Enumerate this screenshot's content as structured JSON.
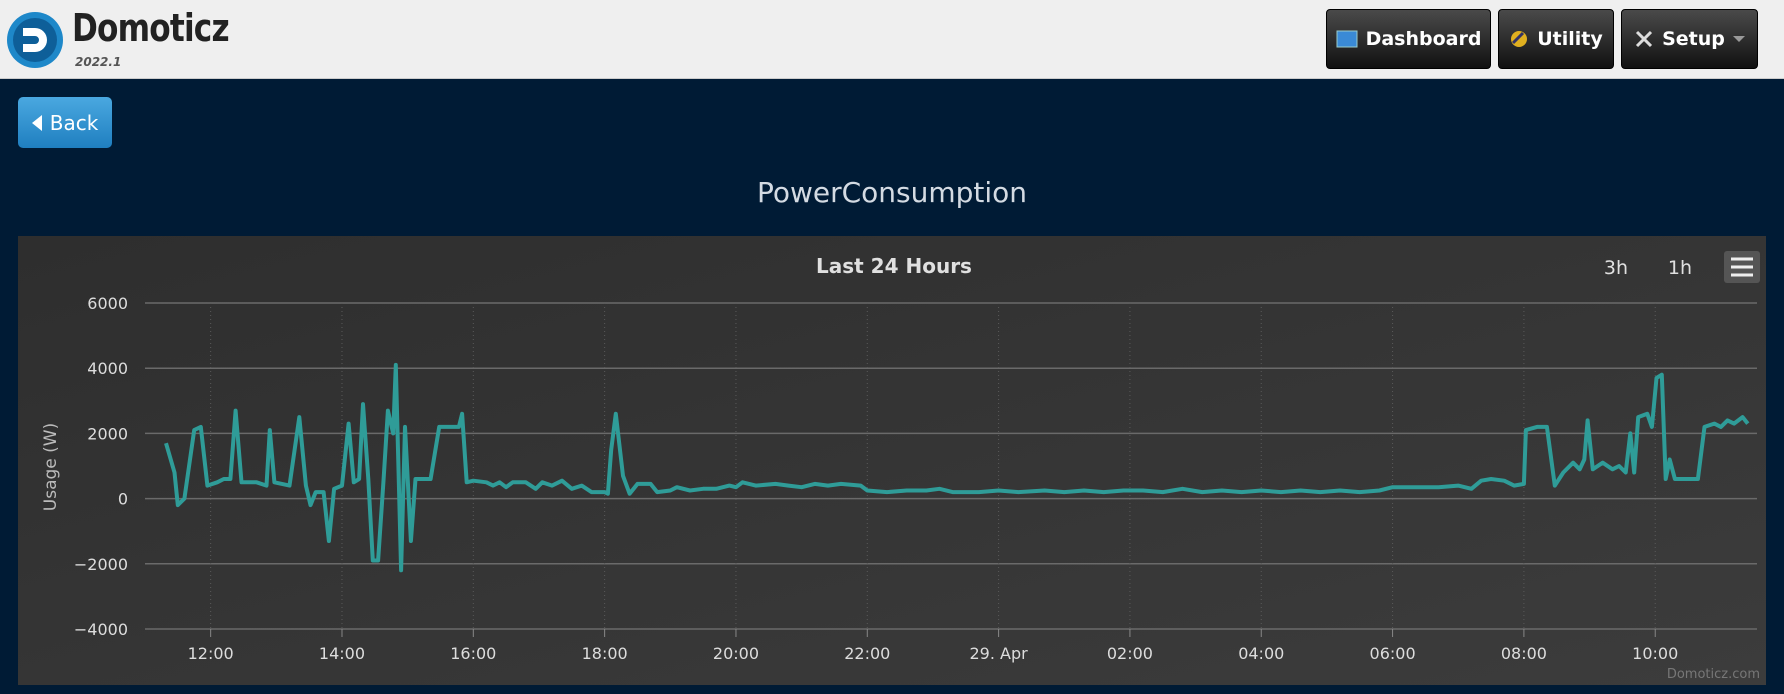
{
  "header": {
    "app_name": "Domoticz",
    "version": "2022.1"
  },
  "nav": [
    "Dashboard",
    "Utility",
    "Setup"
  ],
  "back_button": "Back",
  "page_title": "PowerConsumption",
  "chart_data": {
    "type": "line",
    "title": "Last 24 Hours",
    "y_label": "Usage (W)",
    "zoom_buttons": [
      "3h",
      "1h"
    ],
    "credits": "Domoticz.com",
    "color": "#2f9c98",
    "grid": true,
    "x": [
      11.32,
      11.45,
      11.5,
      11.6,
      11.75,
      11.85,
      11.95,
      12.1,
      12.2,
      12.3,
      12.38,
      12.47,
      12.7,
      12.85,
      12.9,
      12.97,
      13.2,
      13.35,
      13.45,
      13.52,
      13.6,
      13.72,
      13.8,
      13.88,
      14.0,
      14.1,
      14.18,
      14.26,
      14.32,
      14.4,
      14.47,
      14.55,
      14.63,
      14.7,
      14.78,
      14.82,
      14.9,
      14.96,
      15.05,
      15.12,
      15.35,
      15.48,
      15.6,
      15.78,
      15.83,
      15.9,
      16.0,
      16.2,
      16.3,
      16.4,
      16.5,
      16.6,
      16.8,
      16.95,
      17.05,
      17.2,
      17.35,
      17.5,
      17.65,
      17.8,
      18.0,
      18.05,
      18.1,
      18.17,
      18.28,
      18.38,
      18.5,
      18.7,
      18.8,
      19.0,
      19.1,
      19.3,
      19.5,
      19.7,
      19.9,
      20.0,
      20.1,
      20.3,
      20.6,
      20.8,
      21.0,
      21.2,
      21.4,
      21.6,
      21.9,
      22.0,
      22.3,
      22.6,
      22.9,
      23.1,
      23.3,
      23.7,
      24.0,
      24.3,
      24.7,
      25.0,
      25.3,
      25.6,
      25.9,
      26.2,
      26.5,
      26.8,
      27.1,
      27.4,
      27.7,
      28.0,
      28.3,
      28.6,
      28.9,
      29.2,
      29.5,
      29.8,
      30.0,
      30.3,
      30.7,
      31.0,
      31.2,
      31.35,
      31.5,
      31.7,
      31.85,
      32.0,
      32.03,
      32.2,
      32.35,
      32.47,
      32.6,
      32.75,
      32.85,
      32.92,
      32.97,
      33.05,
      33.2,
      33.35,
      33.45,
      33.55,
      33.62,
      33.68,
      33.74,
      33.88,
      33.95,
      34.02,
      34.1,
      34.16,
      34.22,
      34.3,
      34.65,
      34.75,
      34.9,
      35.0,
      35.1,
      35.2,
      35.33,
      35.41
    ],
    "values": [
      1700,
      800,
      -200,
      0,
      2100,
      2200,
      400,
      500,
      600,
      600,
      2700,
      500,
      500,
      400,
      2100,
      500,
      400,
      2500,
      400,
      -200,
      200,
      200,
      -1300,
      300,
      400,
      2300,
      500,
      600,
      2900,
      600,
      -1900,
      -1900,
      500,
      2700,
      2000,
      4100,
      -2200,
      2200,
      -1300,
      600,
      600,
      2200,
      2200,
      2200,
      2600,
      500,
      550,
      500,
      400,
      500,
      350,
      500,
      500,
      300,
      500,
      400,
      550,
      300,
      400,
      200,
      200,
      150,
      1500,
      2600,
      700,
      150,
      450,
      450,
      200,
      250,
      350,
      250,
      300,
      300,
      400,
      350,
      500,
      400,
      450,
      400,
      350,
      450,
      400,
      450,
      400,
      250,
      200,
      250,
      250,
      300,
      200,
      200,
      250,
      200,
      250,
      200,
      250,
      200,
      250,
      250,
      200,
      300,
      200,
      250,
      200,
      250,
      200,
      250,
      200,
      250,
      200,
      250,
      350,
      350,
      350,
      400,
      300,
      550,
      600,
      550,
      400,
      450,
      2100,
      2200,
      2200,
      400,
      800,
      1100,
      900,
      1200,
      2400,
      900,
      1100,
      900,
      1000,
      800,
      2000,
      800,
      2500,
      2600,
      2200,
      3700,
      3800,
      600,
      1200,
      600,
      600,
      2200,
      2300,
      2200,
      2400,
      2300,
      2500,
      2300
    ],
    "xlim": [
      11,
      35.55
    ],
    "xticks": [
      {
        "value": 12,
        "label": "12:00"
      },
      {
        "value": 14,
        "label": "14:00"
      },
      {
        "value": 16,
        "label": "16:00"
      },
      {
        "value": 18,
        "label": "18:00"
      },
      {
        "value": 20,
        "label": "20:00"
      },
      {
        "value": 22,
        "label": "22:00"
      },
      {
        "value": 24,
        "label": "29. Apr"
      },
      {
        "value": 26,
        "label": "02:00"
      },
      {
        "value": 28,
        "label": "04:00"
      },
      {
        "value": 30,
        "label": "06:00"
      },
      {
        "value": 32,
        "label": "08:00"
      },
      {
        "value": 34,
        "label": "10:00"
      }
    ],
    "ylim": [
      -4000,
      6000
    ],
    "yticks": [
      {
        "value": -4000,
        "label": "−4000"
      },
      {
        "value": -2000,
        "label": "−2000"
      },
      0,
      2000,
      4000,
      6000
    ]
  }
}
